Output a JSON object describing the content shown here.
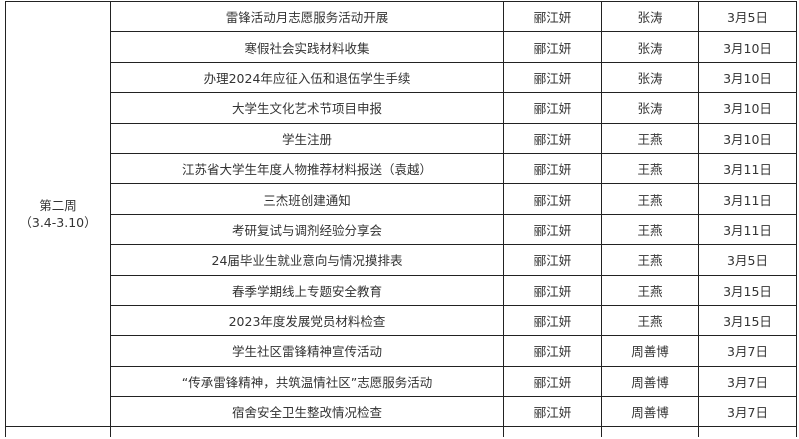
{
  "week": {
    "label": "第二周",
    "range": "（3.4-3.10）"
  },
  "rows": [
    {
      "task": "雷锋活动月志愿服务活动开展",
      "owner": "郦江妍",
      "assignee": "张涛",
      "date": "3月5日"
    },
    {
      "task": "寒假社会实践材料收集",
      "owner": "郦江妍",
      "assignee": "张涛",
      "date": "3月10日"
    },
    {
      "task": "办理2024年应征入伍和退伍学生手续",
      "owner": "郦江妍",
      "assignee": "张涛",
      "date": "3月10日"
    },
    {
      "task": "大学生文化艺术节项目申报",
      "owner": "郦江妍",
      "assignee": "张涛",
      "date": "3月10日"
    },
    {
      "task": "学生注册",
      "owner": "郦江妍",
      "assignee": "王燕",
      "date": "3月10日"
    },
    {
      "task": "江苏省大学生年度人物推荐材料报送（袁越）",
      "owner": "郦江妍",
      "assignee": "王燕",
      "date": "3月11日"
    },
    {
      "task": "三杰班创建通知",
      "owner": "郦江妍",
      "assignee": "王燕",
      "date": "3月11日"
    },
    {
      "task": "考研复试与调剂经验分享会",
      "owner": "郦江妍",
      "assignee": "王燕",
      "date": "3月11日"
    },
    {
      "task": "24届毕业生就业意向与情况摸排表",
      "owner": "郦江妍",
      "assignee": "王燕",
      "date": "3月5日"
    },
    {
      "task": "春季学期线上专题安全教育",
      "owner": "郦江妍",
      "assignee": "王燕",
      "date": "3月15日"
    },
    {
      "task": "2023年度发展党员材料检查",
      "owner": "郦江妍",
      "assignee": "王燕",
      "date": "3月15日"
    },
    {
      "task": "学生社区雷锋精神宣传活动",
      "owner": "郦江妍",
      "assignee": "周善博",
      "date": "3月7日"
    },
    {
      "task": "“传承雷锋精神，共筑温情社区”志愿服务活动",
      "owner": "郦江妍",
      "assignee": "周善博",
      "date": "3月7日"
    },
    {
      "task": "宿舍安全卫生整改情况检查",
      "owner": "郦江妍",
      "assignee": "周善博",
      "date": "3月7日"
    }
  ]
}
